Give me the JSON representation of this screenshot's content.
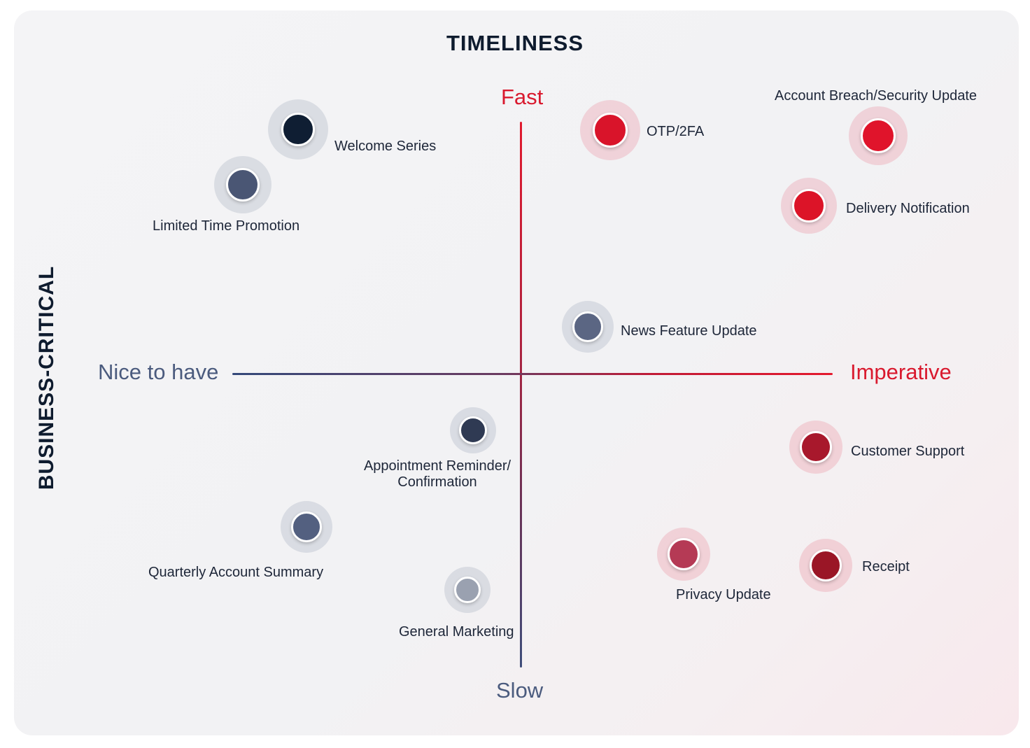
{
  "titles": {
    "top": "TIMELINESS",
    "left": "BUSINESS-CRITICAL"
  },
  "axes": {
    "fast": "Fast",
    "slow": "Slow",
    "nice": "Nice to have",
    "imperative": "Imperative"
  },
  "colors": {
    "navy_text": "#0e1b2e",
    "fast_red": "#d9192e",
    "slow_blue": "#4b5b7e"
  },
  "items": [
    {
      "name": "welcome-series",
      "label": "Welcome Series",
      "color": "#0f1e33"
    },
    {
      "name": "limited-time-promotion",
      "label": "Limited Time Promotion",
      "color": "#4a5674"
    },
    {
      "name": "otp-2fa",
      "label": "OTP/2FA",
      "color": "#d9142a"
    },
    {
      "name": "account-breach-security-update",
      "label": "Account Breach/Security Update",
      "color": "#e0142b"
    },
    {
      "name": "delivery-notification",
      "label": "Delivery Notification",
      "color": "#dc1428"
    },
    {
      "name": "news-feature-update",
      "label": "News Feature Update",
      "color": "#5b6683"
    },
    {
      "name": "appointment-reminder-confirmation",
      "label": "Appointment Reminder/\nConfirmation",
      "color": "#2f3a53"
    },
    {
      "name": "customer-support",
      "label": "Customer Support",
      "color": "#a8182c"
    },
    {
      "name": "quarterly-account-summary",
      "label": "Quarterly Account Summary",
      "color": "#536080"
    },
    {
      "name": "privacy-update",
      "label": "Privacy Update",
      "color": "#b53a55"
    },
    {
      "name": "receipt",
      "label": "Receipt",
      "color": "#9a1626"
    },
    {
      "name": "general-marketing",
      "label": "General Marketing",
      "color": "#9aa1b0"
    }
  ]
}
